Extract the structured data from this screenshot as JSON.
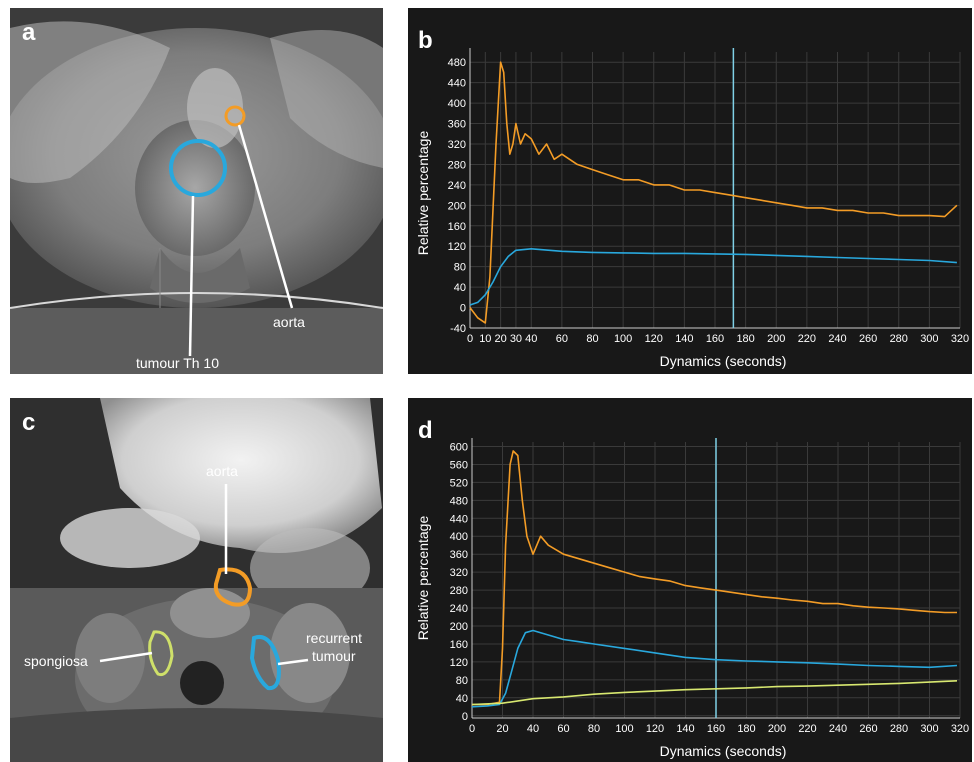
{
  "panels": {
    "a": {
      "label": "a",
      "annotations": {
        "tumour": "tumour Th 10",
        "aorta": "aorta"
      },
      "roi_colors": {
        "tumour": "#29a8dd",
        "aorta": "#f39c26"
      }
    },
    "c": {
      "label": "c",
      "annotations": {
        "aorta": "aorta",
        "spongiosa": "spongiosa",
        "recurrent_line1": "recurrent",
        "recurrent_line2": "tumour"
      },
      "roi_colors": {
        "aorta": "#f39c26",
        "spongiosa": "#cfe06a",
        "recurrent": "#29a8dd"
      }
    }
  },
  "chart_data": [
    {
      "panel_label": "b",
      "type": "line",
      "xlabel": "Dynamics (seconds)",
      "ylabel": "Relative percentage",
      "xlim": [
        0,
        320
      ],
      "ylim": [
        -40,
        500
      ],
      "xticks": [
        0,
        10,
        20,
        30,
        40,
        60,
        80,
        100,
        120,
        140,
        160,
        180,
        200,
        220,
        240,
        260,
        280,
        300,
        320
      ],
      "yticks": [
        -40,
        0,
        40,
        80,
        120,
        160,
        200,
        240,
        280,
        320,
        360,
        400,
        440,
        480
      ],
      "grid": true,
      "cursor_x": 172,
      "series": [
        {
          "color": "#f39c26",
          "x": [
            0,
            5,
            10,
            13,
            17,
            20,
            22,
            24,
            26,
            28,
            30,
            33,
            36,
            40,
            45,
            50,
            55,
            60,
            70,
            80,
            90,
            100,
            110,
            120,
            130,
            140,
            150,
            160,
            170,
            180,
            190,
            200,
            210,
            220,
            230,
            240,
            250,
            260,
            270,
            280,
            290,
            300,
            310,
            318
          ],
          "y": [
            0,
            -20,
            -30,
            60,
            320,
            480,
            460,
            360,
            300,
            320,
            360,
            320,
            340,
            330,
            300,
            320,
            290,
            300,
            280,
            270,
            260,
            250,
            250,
            240,
            240,
            230,
            230,
            225,
            220,
            215,
            210,
            205,
            200,
            195,
            195,
            190,
            190,
            185,
            185,
            180,
            180,
            180,
            178,
            200
          ]
        },
        {
          "color": "#29a8dd",
          "x": [
            0,
            5,
            10,
            15,
            20,
            25,
            30,
            40,
            60,
            80,
            100,
            120,
            140,
            160,
            180,
            200,
            220,
            240,
            260,
            280,
            300,
            318
          ],
          "y": [
            5,
            10,
            25,
            50,
            80,
            100,
            112,
            115,
            110,
            108,
            107,
            106,
            106,
            105,
            104,
            102,
            100,
            98,
            96,
            94,
            92,
            88
          ]
        }
      ]
    },
    {
      "panel_label": "d",
      "type": "line",
      "xlabel": "Dynamics (seconds)",
      "ylabel": "Relative percentage",
      "xlim": [
        0,
        320
      ],
      "ylim": [
        -5,
        610
      ],
      "xticks": [
        0,
        20,
        40,
        60,
        80,
        100,
        120,
        140,
        160,
        180,
        200,
        220,
        240,
        260,
        280,
        300,
        320
      ],
      "yticks": [
        0,
        40,
        80,
        120,
        160,
        200,
        240,
        280,
        320,
        360,
        400,
        440,
        480,
        520,
        560,
        600
      ],
      "grid": true,
      "cursor_x": 160,
      "series": [
        {
          "color": "#f39c26",
          "x": [
            0,
            10,
            18,
            20,
            22,
            25,
            27,
            30,
            33,
            36,
            40,
            45,
            50,
            60,
            70,
            80,
            90,
            100,
            110,
            120,
            130,
            140,
            150,
            160,
            170,
            180,
            190,
            200,
            210,
            220,
            230,
            240,
            250,
            260,
            270,
            280,
            290,
            300,
            310,
            318
          ],
          "y": [
            25,
            25,
            30,
            150,
            380,
            560,
            590,
            580,
            480,
            400,
            360,
            400,
            380,
            360,
            350,
            340,
            330,
            320,
            310,
            305,
            300,
            290,
            285,
            280,
            275,
            270,
            265,
            262,
            258,
            255,
            250,
            250,
            245,
            242,
            240,
            238,
            235,
            232,
            230,
            230
          ]
        },
        {
          "color": "#29a8dd",
          "x": [
            0,
            10,
            18,
            22,
            26,
            30,
            35,
            40,
            50,
            60,
            70,
            80,
            100,
            120,
            140,
            160,
            180,
            200,
            220,
            240,
            260,
            280,
            300,
            318
          ],
          "y": [
            20,
            22,
            25,
            50,
            100,
            150,
            185,
            190,
            180,
            170,
            165,
            160,
            150,
            140,
            130,
            125,
            122,
            120,
            118,
            115,
            112,
            110,
            108,
            112
          ]
        },
        {
          "color": "#d8e870",
          "x": [
            0,
            20,
            40,
            60,
            80,
            100,
            120,
            140,
            160,
            180,
            200,
            220,
            240,
            260,
            280,
            300,
            318
          ],
          "y": [
            25,
            28,
            38,
            42,
            48,
            52,
            55,
            58,
            60,
            62,
            65,
            66,
            68,
            70,
            72,
            75,
            78
          ]
        }
      ]
    }
  ]
}
